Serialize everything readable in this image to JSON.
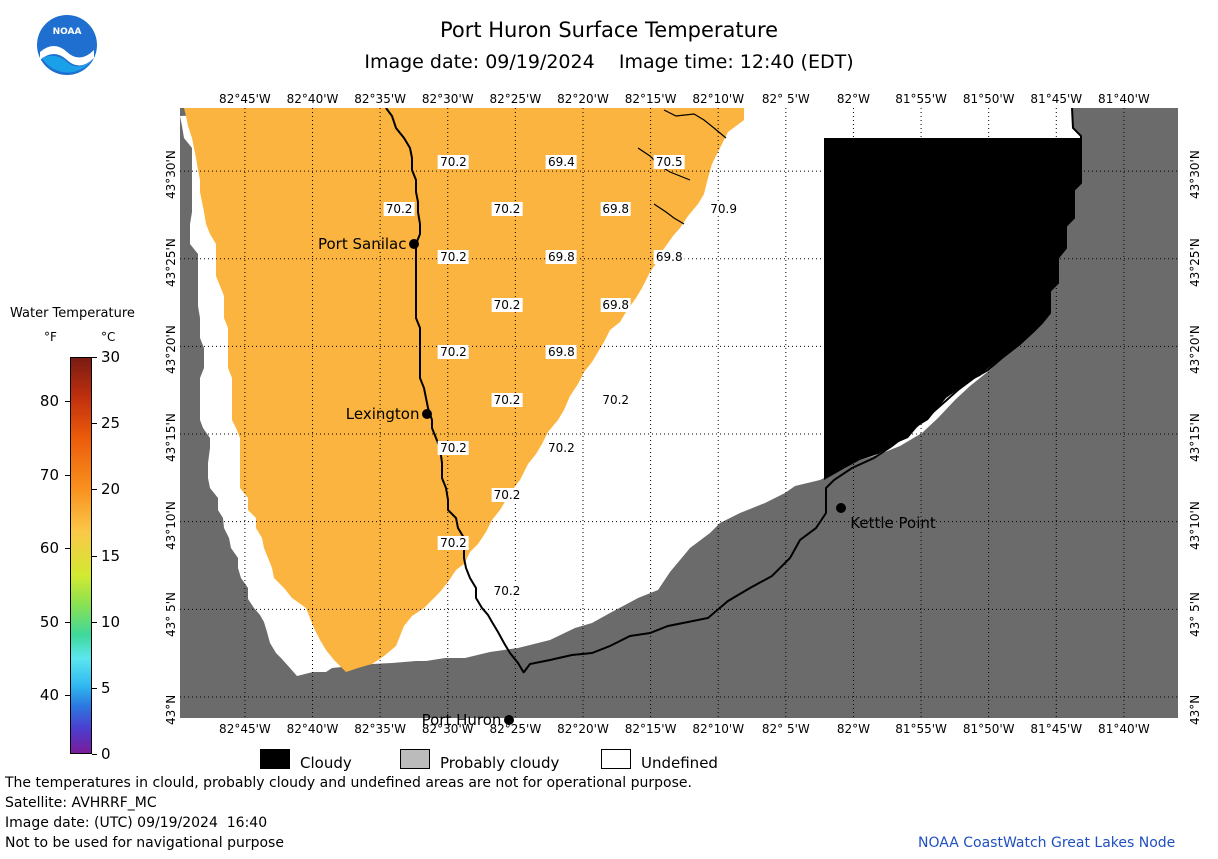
{
  "title": "Port Huron Surface Temperature",
  "date_line": "Image date: 09/19/2024    Image time: 12:40 (EDT)",
  "logo": {
    "text": "NOAA",
    "icon": "noaa-logo-icon"
  },
  "longitude_labels": [
    "82°45'W",
    "82°40'W",
    "82°35'W",
    "82°30'W",
    "82°25'W",
    "82°20'W",
    "82°15'W",
    "82°10'W",
    "82° 5'W",
    "82°W",
    "81°55'W",
    "81°50'W",
    "81°45'W",
    "81°40'W"
  ],
  "latitude_labels": [
    "43°30'N",
    "43°25'N",
    "43°20'N",
    "43°15'N",
    "43°10'N",
    "43° 5'N",
    "43°N"
  ],
  "temperatures": [
    {
      "value": "70.2",
      "lon": -82.493,
      "lat": 43.509
    },
    {
      "value": "69.4",
      "lon": -82.36,
      "lat": 43.509
    },
    {
      "value": "70.5",
      "lon": -82.227,
      "lat": 43.509
    },
    {
      "value": "70.2",
      "lon": -82.56,
      "lat": 43.464
    },
    {
      "value": "70.2",
      "lon": -82.427,
      "lat": 43.464
    },
    {
      "value": "69.8",
      "lon": -82.293,
      "lat": 43.464
    },
    {
      "value": "70.9",
      "lon": -82.16,
      "lat": 43.464
    },
    {
      "value": "70.2",
      "lon": -82.493,
      "lat": 43.418
    },
    {
      "value": "69.8",
      "lon": -82.36,
      "lat": 43.418
    },
    {
      "value": "69.8",
      "lon": -82.227,
      "lat": 43.418
    },
    {
      "value": "70.2",
      "lon": -82.427,
      "lat": 43.373
    },
    {
      "value": "69.8",
      "lon": -82.293,
      "lat": 43.373
    },
    {
      "value": "70.2",
      "lon": -82.493,
      "lat": 43.328
    },
    {
      "value": "69.8",
      "lon": -82.36,
      "lat": 43.328
    },
    {
      "value": "70.2",
      "lon": -82.427,
      "lat": 43.282
    },
    {
      "value": "70.2",
      "lon": -82.293,
      "lat": 43.282
    },
    {
      "value": "70.2",
      "lon": -82.493,
      "lat": 43.237
    },
    {
      "value": "70.2",
      "lon": -82.36,
      "lat": 43.237
    },
    {
      "value": "70.2",
      "lon": -82.427,
      "lat": 43.192
    },
    {
      "value": "70.2",
      "lon": -82.493,
      "lat": 43.146
    },
    {
      "value": "70.2",
      "lon": -82.427,
      "lat": 43.101
    }
  ],
  "places": [
    {
      "name": "Port Sanilac",
      "lon": -82.541,
      "lat": 43.431,
      "side": "left"
    },
    {
      "name": "Lexington",
      "lon": -82.525,
      "lat": 43.269,
      "side": "left"
    },
    {
      "name": "Kettle Point",
      "lon": -82.015,
      "lat": 43.18,
      "side": "right"
    },
    {
      "name": "Port Huron",
      "lon": -82.424,
      "lat": 42.978,
      "side": "left"
    }
  ],
  "legend": {
    "title": "Water Temperature",
    "unit_f": "°F",
    "unit_c": "°C",
    "fahrenheit_ticks": [
      "80",
      "70",
      "60",
      "50",
      "40"
    ],
    "celsius_ticks": [
      "30",
      "25",
      "20",
      "15",
      "10",
      "5",
      "0"
    ],
    "range_c": [
      0,
      30
    ]
  },
  "key": [
    {
      "label": "Cloudy",
      "color": "#000000"
    },
    {
      "label": "Probably cloudy",
      "color": "#bbbbbb"
    },
    {
      "label": "Undefined",
      "color": "#ffffff"
    }
  ],
  "footer": {
    "disclaimer": "The temperatures in clould, probably cloudy and undefined areas are not for operational purpose.",
    "satellite": "Satellite: AVHRRF_MC",
    "utc_date": "Image date: (UTC) 09/19/2024  16:40",
    "navigation": "Not to be used for navigational purpose",
    "credit": "NOAA CoastWatch Great Lakes Node"
  },
  "colors": {
    "land": "#6b6b6b",
    "water_temp": "#fbb43f",
    "cloudy": "#000000",
    "undefined": "#ffffff",
    "graticule": "#000000"
  }
}
